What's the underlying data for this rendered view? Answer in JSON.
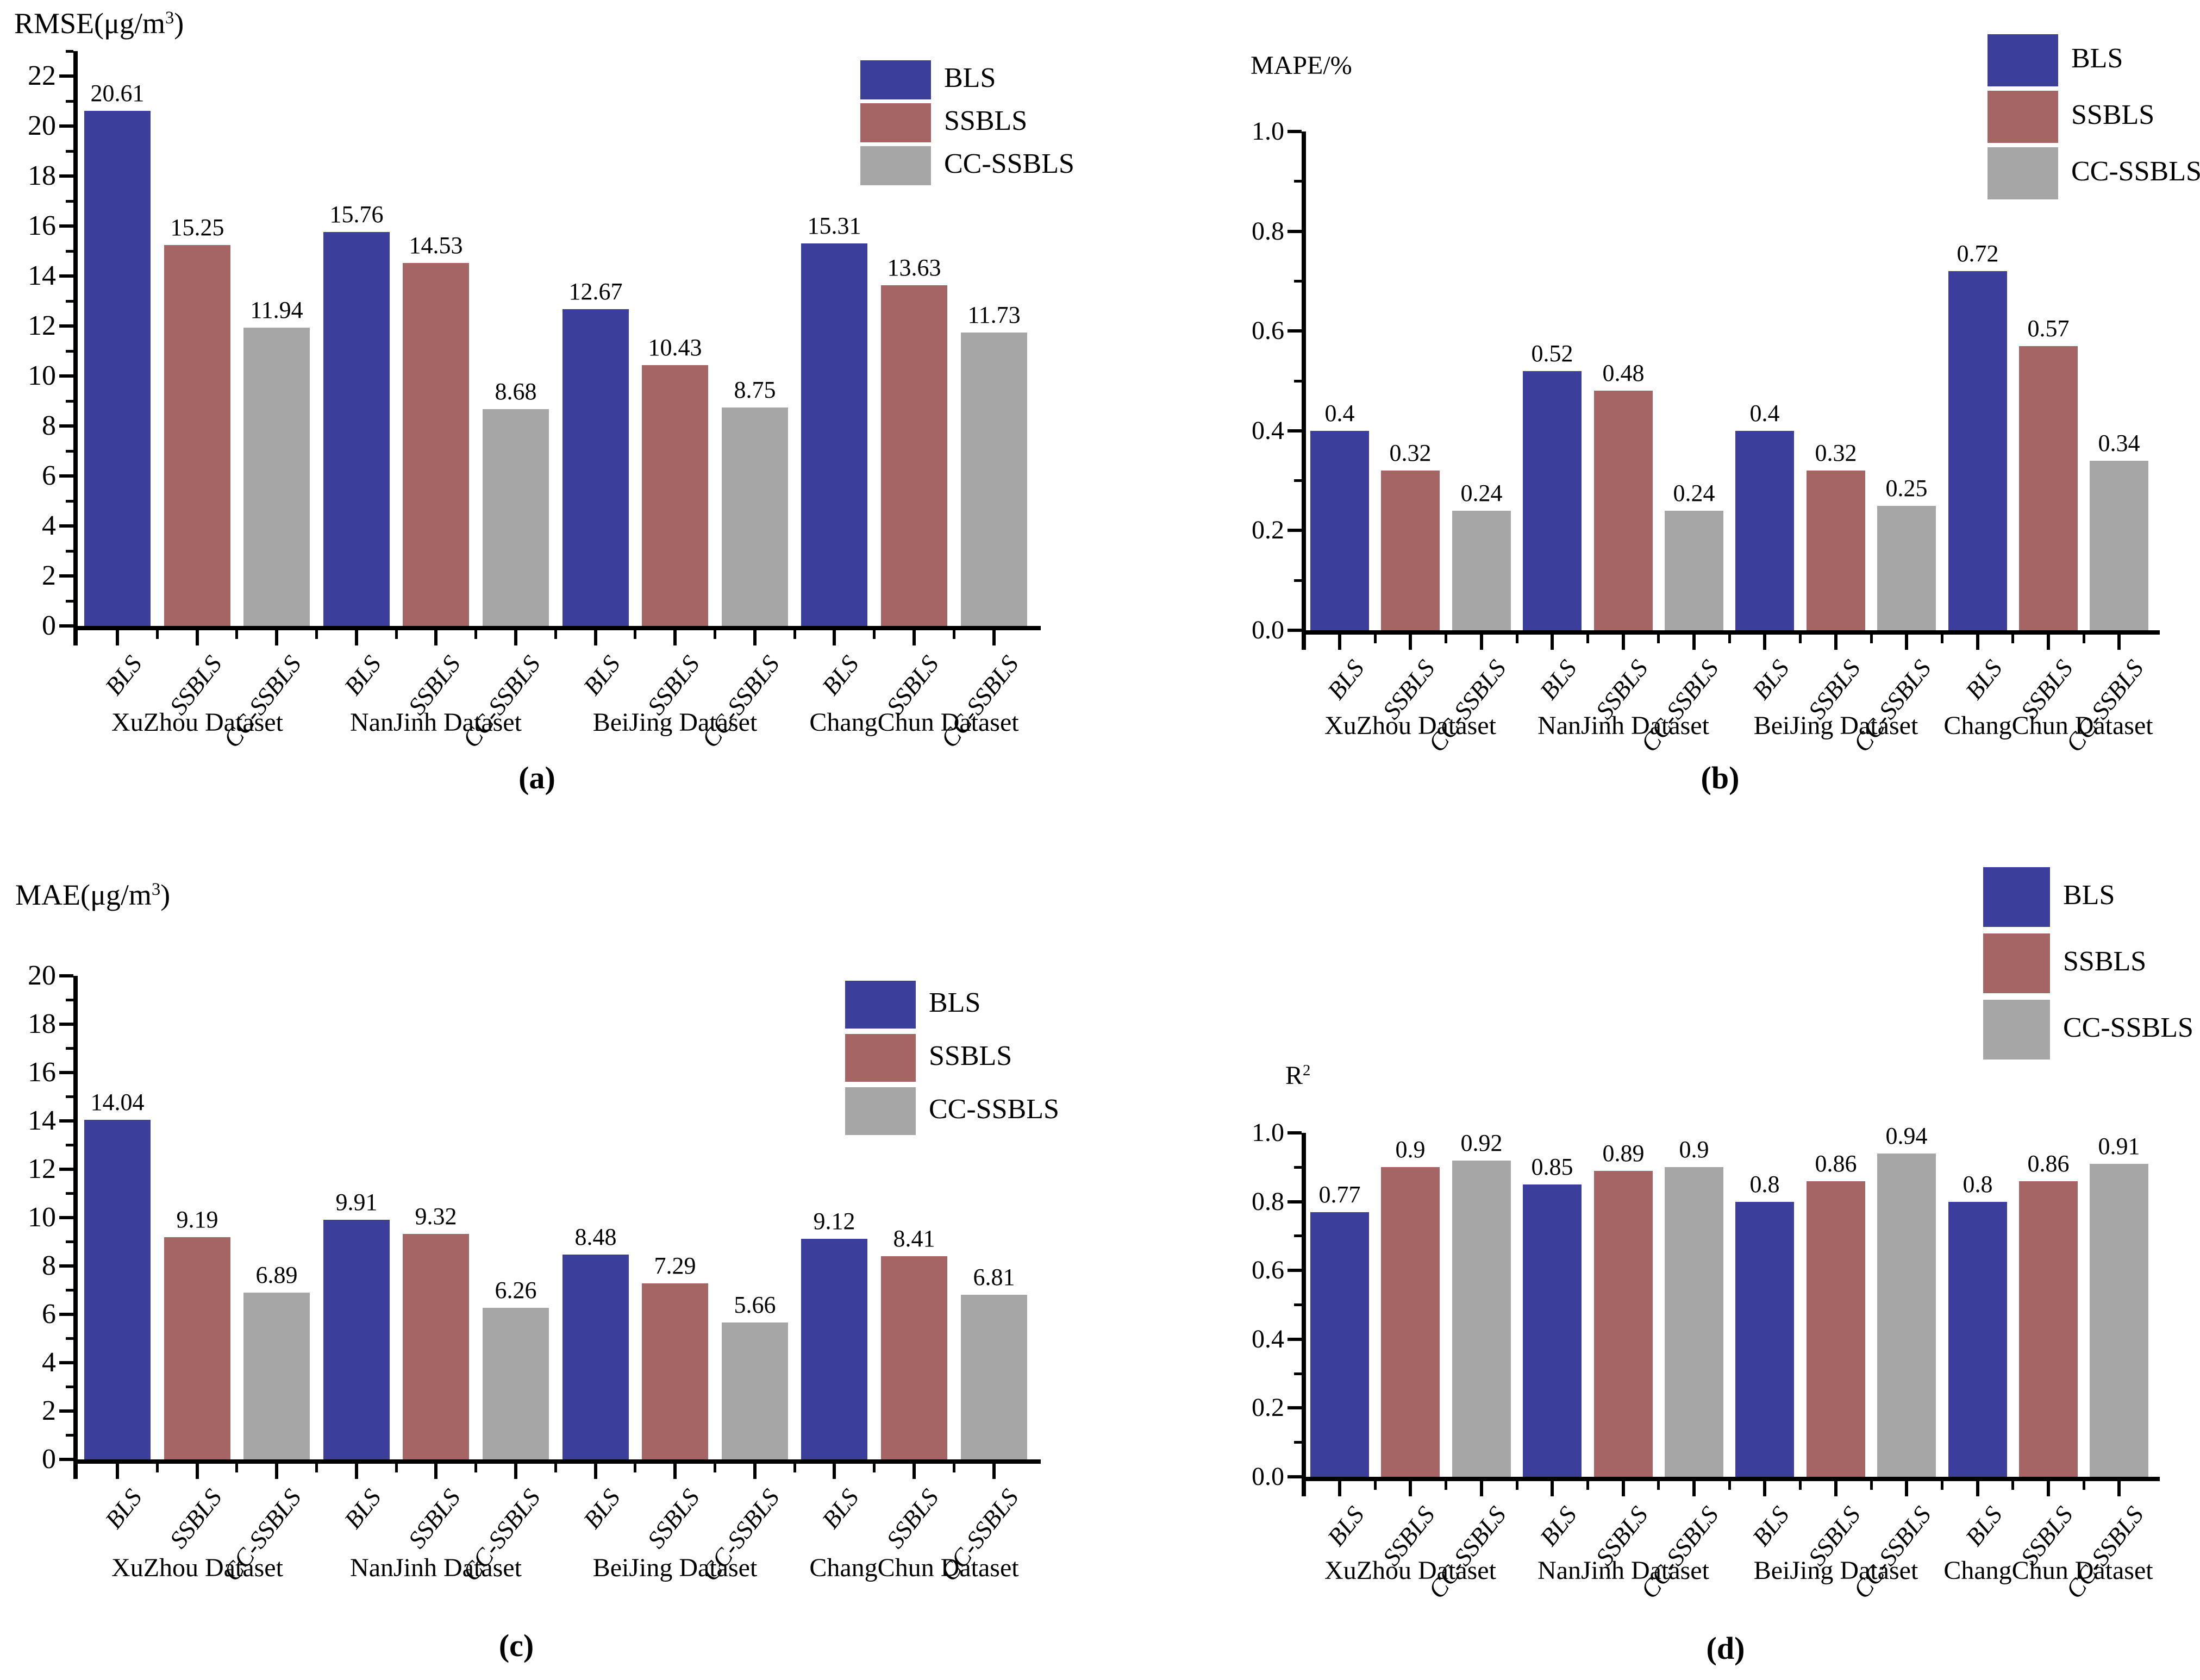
{
  "figure": {
    "background": "#FFFFFF",
    "series_colors": {
      "BLS": "#3C3E9C",
      "SSBLS": "#A56565",
      "CC-SSBLS": "#A6A6A6"
    }
  },
  "chart_data": [
    {
      "type": "bar",
      "panel_letter": "(a)",
      "title": {
        "text": "RMSE(μg/m³)",
        "prefix": "RMSE(μg/m",
        "sup": "3",
        "suffix": ")"
      },
      "ylabel": "RMSE(μg/m³)",
      "categories": [
        "XuZhou Dataset",
        "NanJinh Dataset",
        "BeiJing Dataset",
        "ChangChun Dataset"
      ],
      "series": [
        {
          "name": "BLS",
          "color": "#3C3E9C",
          "values": [
            20.61,
            15.76,
            12.67,
            15.31
          ],
          "labels": [
            "20.61",
            "15.76",
            "12.67",
            "15.31"
          ]
        },
        {
          "name": "SSBLS",
          "color": "#A56565",
          "values": [
            15.25,
            14.53,
            10.43,
            13.63
          ],
          "labels": [
            "15.25",
            "14.53",
            "10.43",
            "13.63"
          ]
        },
        {
          "name": "CC-SSBLS",
          "color": "#A6A6A6",
          "values": [
            11.94,
            8.68,
            8.75,
            11.73
          ],
          "labels": [
            "11.94",
            "8.68",
            "8.75",
            "11.73"
          ]
        }
      ],
      "ylim": [
        0,
        23
      ],
      "ytick_values": [
        0,
        2,
        4,
        6,
        8,
        10,
        12,
        14,
        16,
        18,
        20,
        22
      ],
      "ytick_labels": [
        "0",
        "2",
        "4",
        "6",
        "8",
        "10",
        "12",
        "14",
        "16",
        "18",
        "20",
        "22"
      ],
      "ytick_minor_values": [
        1,
        3,
        5,
        7,
        9,
        11,
        13,
        15,
        17,
        19,
        21,
        23
      ],
      "legend": [
        "BLS",
        "SSBLS",
        "CC-SSBLS"
      ],
      "legend_position": "top-right",
      "grid": false
    },
    {
      "type": "bar",
      "panel_letter": "(b)",
      "title": {
        "text": "MAPE/%",
        "prefix": "MAPE/%",
        "sup": "",
        "suffix": ""
      },
      "ylabel": "MAPE/%",
      "categories": [
        "XuZhou Dataset",
        "NanJinh Dataset",
        "BeiJing Dataset",
        "ChangChun Dataset"
      ],
      "series": [
        {
          "name": "BLS",
          "color": "#3C3E9C",
          "values": [
            0.4,
            0.52,
            0.4,
            0.72
          ],
          "labels": [
            "0.4",
            "0.52",
            "0.4",
            "0.72"
          ]
        },
        {
          "name": "SSBLS",
          "color": "#A56565",
          "values": [
            0.32,
            0.48,
            0.32,
            0.57
          ],
          "labels": [
            "0.32",
            "0.48",
            "0.32",
            "0.57"
          ]
        },
        {
          "name": "CC-SSBLS",
          "color": "#A6A6A6",
          "values": [
            0.24,
            0.24,
            0.25,
            0.34
          ],
          "labels": [
            "0.24",
            "0.24",
            "0.25",
            "0.34"
          ]
        }
      ],
      "ylim": [
        0,
        1.0
      ],
      "ytick_values": [
        0,
        0.2,
        0.4,
        0.6,
        0.8,
        1.0
      ],
      "ytick_labels": [
        "0.0",
        "0.2",
        "0.4",
        "0.6",
        "0.8",
        "1.0"
      ],
      "ytick_minor_values": [
        0.1,
        0.3,
        0.5,
        0.7,
        0.9
      ],
      "legend": [
        "BLS",
        "SSBLS",
        "CC-SSBLS"
      ],
      "legend_position": "top-right",
      "grid": false
    },
    {
      "type": "bar",
      "panel_letter": "(c)",
      "title": {
        "text": "MAE(μg/m³)",
        "prefix": "MAE(μg/m",
        "sup": "3",
        "suffix": ")"
      },
      "ylabel": "MAE(μg/m³)",
      "categories": [
        "XuZhou Dataset",
        "NanJinh Dataset",
        "BeiJing Dataset",
        "ChangChun Dataset"
      ],
      "series": [
        {
          "name": "BLS",
          "color": "#3C3E9C",
          "values": [
            14.04,
            9.91,
            8.48,
            9.12
          ],
          "labels": [
            "14.04",
            "9.91",
            "8.48",
            "9.12"
          ]
        },
        {
          "name": "SSBLS",
          "color": "#A56565",
          "values": [
            9.19,
            9.32,
            7.29,
            8.41
          ],
          "labels": [
            "9.19",
            "9.32",
            "7.29",
            "8.41"
          ]
        },
        {
          "name": "CC-SSBLS",
          "color": "#A6A6A6",
          "values": [
            6.89,
            6.26,
            5.66,
            6.81
          ],
          "labels": [
            "6.89",
            "6.26",
            "5.66",
            "6.81"
          ]
        }
      ],
      "ylim": [
        0,
        20
      ],
      "ytick_values": [
        0,
        2,
        4,
        6,
        8,
        10,
        12,
        14,
        16,
        18,
        20
      ],
      "ytick_labels": [
        "0",
        "2",
        "4",
        "6",
        "8",
        "10",
        "12",
        "14",
        "16",
        "18",
        "20"
      ],
      "ytick_minor_values": [
        1,
        3,
        5,
        7,
        9,
        11,
        13,
        15,
        17,
        19
      ],
      "legend": [
        "BLS",
        "SSBLS",
        "CC-SSBLS"
      ],
      "legend_position": "top-right",
      "grid": false
    },
    {
      "type": "bar",
      "panel_letter": "(d)",
      "title": {
        "text": "R²",
        "prefix": "R",
        "sup": "2",
        "suffix": ""
      },
      "ylabel": "R²",
      "categories": [
        "XuZhou Dataset",
        "NanJinh Dataset",
        "BeiJing Dataset",
        "ChangChun Dataset"
      ],
      "series": [
        {
          "name": "BLS",
          "color": "#3C3E9C",
          "values": [
            0.77,
            0.85,
            0.8,
            0.8
          ],
          "labels": [
            "0.77",
            "0.85",
            "0.8",
            "0.8"
          ]
        },
        {
          "name": "SSBLS",
          "color": "#A56565",
          "values": [
            0.9,
            0.89,
            0.86,
            0.86
          ],
          "labels": [
            "0.9",
            "0.89",
            "0.86",
            "0.86"
          ]
        },
        {
          "name": "CC-SSBLS",
          "color": "#A6A6A6",
          "values": [
            0.92,
            0.9,
            0.94,
            0.91
          ],
          "labels": [
            "0.92",
            "0.9",
            "0.94",
            "0.91"
          ]
        }
      ],
      "ylim": [
        0,
        1.0
      ],
      "ytick_values": [
        0,
        0.2,
        0.4,
        0.6,
        0.8,
        1.0
      ],
      "ytick_labels": [
        "0.0",
        "0.2",
        "0.4",
        "0.6",
        "0.8",
        "1.0"
      ],
      "ytick_minor_values": [
        0.1,
        0.3,
        0.5,
        0.7,
        0.9
      ],
      "legend": [
        "BLS",
        "SSBLS",
        "CC-SSBLS"
      ],
      "legend_position": "top-right",
      "grid": false
    }
  ]
}
